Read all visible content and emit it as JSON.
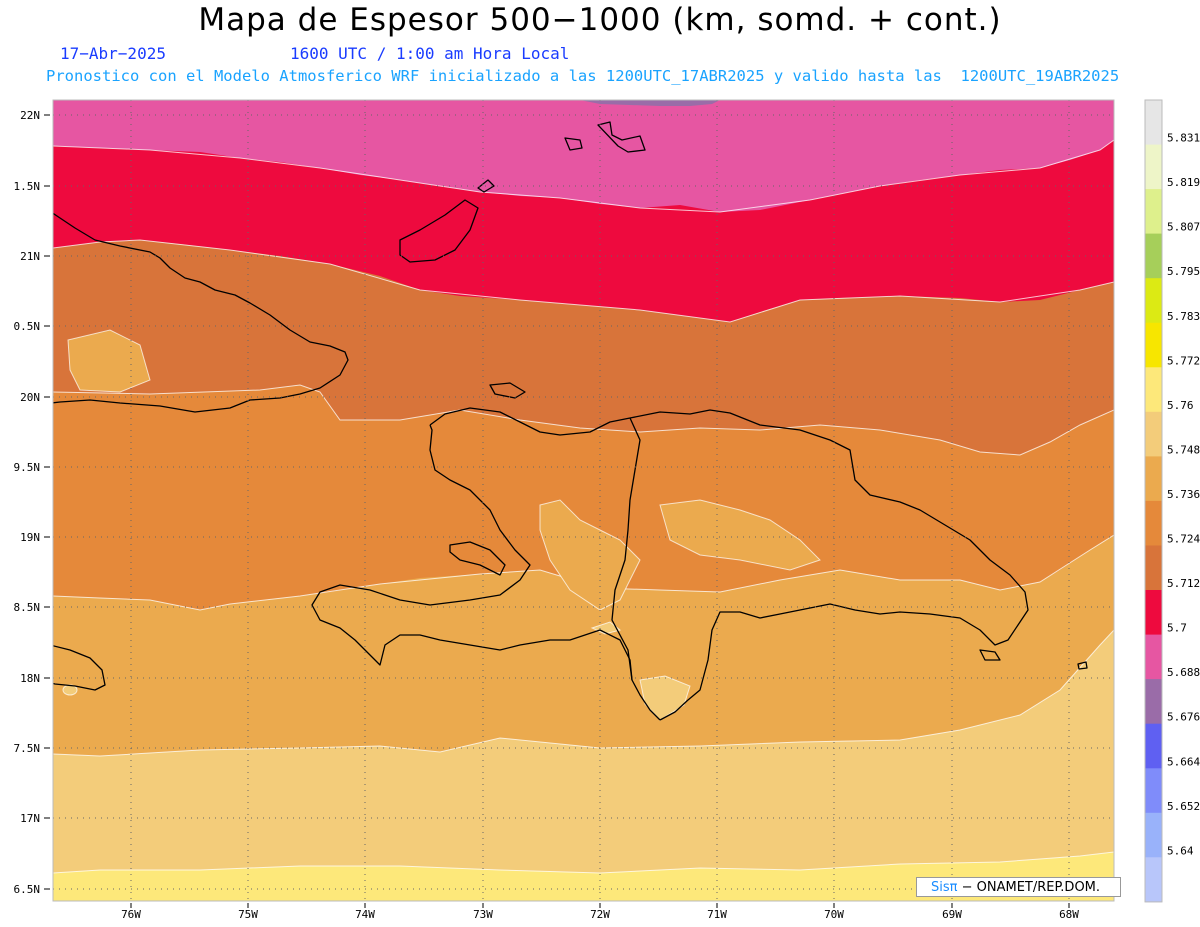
{
  "title": "Mapa de Espesor 500−1000 (km, somd. + cont.)",
  "date": "17−Abr−2025",
  "time": "1600 UTC / 1:00 am Hora Local",
  "description": "Pronostico con el Modelo Atmosferico WRF inicializado a las 1200UTC_17ABR2025 y valido hasta las  1200UTC_19ABR2025",
  "lat_labels": [
    "22N",
    "1.5N",
    "21N",
    "0.5N",
    "20N",
    "9.5N",
    "19N",
    "8.5N",
    "18N",
    "7.5N",
    "17N",
    "6.5N"
  ],
  "lon_labels": [
    "76W",
    "75W",
    "74W",
    "73W",
    "72W",
    "71W",
    "70W",
    "69W",
    "68W"
  ],
  "colorbar": {
    "labels": [
      "5.831",
      "5.819",
      "5.807",
      "5.795",
      "5.783",
      "5.772",
      "5.76",
      "5.748",
      "5.736",
      "5.724",
      "5.712",
      "5.7",
      "5.688",
      "5.676",
      "5.664",
      "5.652",
      "5.64"
    ],
    "colors": [
      "#e6e6e6",
      "#eef5c8",
      "#def08c",
      "#a6cf5a",
      "#dcea14",
      "#f7e600",
      "#fde87a",
      "#f3cc7a",
      "#ebaa4e",
      "#e5893a",
      "#d8743a",
      "#ee0a3e",
      "#e656a2",
      "#9a6ca8",
      "#5f60f2",
      "#7f8cfa",
      "#99b2fa",
      "#b8c6fa"
    ]
  },
  "bands": {
    "purple": "#9a6ca8",
    "pink": "#e656a2",
    "red": "#ee0a3e",
    "brown": "#d8743a",
    "orange1": "#e5893a",
    "orange2": "#ebaa4e",
    "tan": "#f3cc7a",
    "yellow": "#fde87a"
  },
  "footer": {
    "sis": "Sisπ",
    "org": "− ONAMET/REP.DOM."
  }
}
